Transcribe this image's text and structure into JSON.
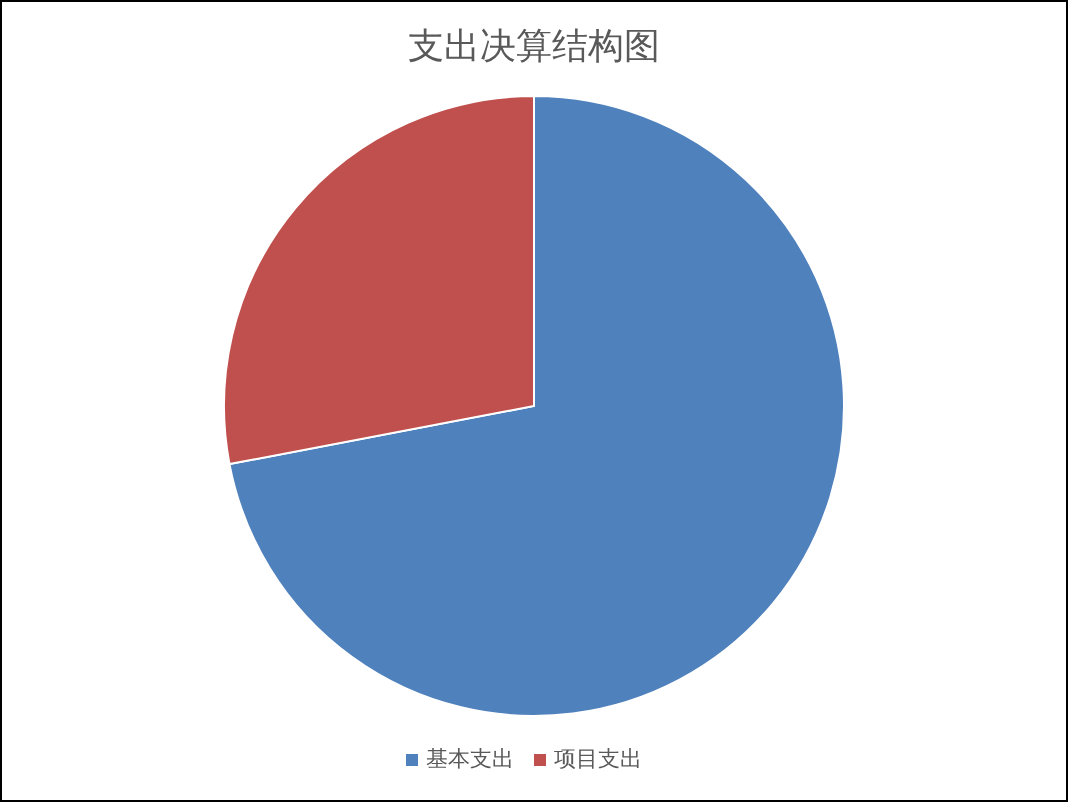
{
  "chart_data": {
    "type": "pie",
    "title": "支出决算结构图",
    "categories": [
      "基本支出",
      "项目支出"
    ],
    "values": [
      72,
      28
    ],
    "colors": [
      "#4f81bd",
      "#c0504d"
    ],
    "legend": "bottom"
  }
}
